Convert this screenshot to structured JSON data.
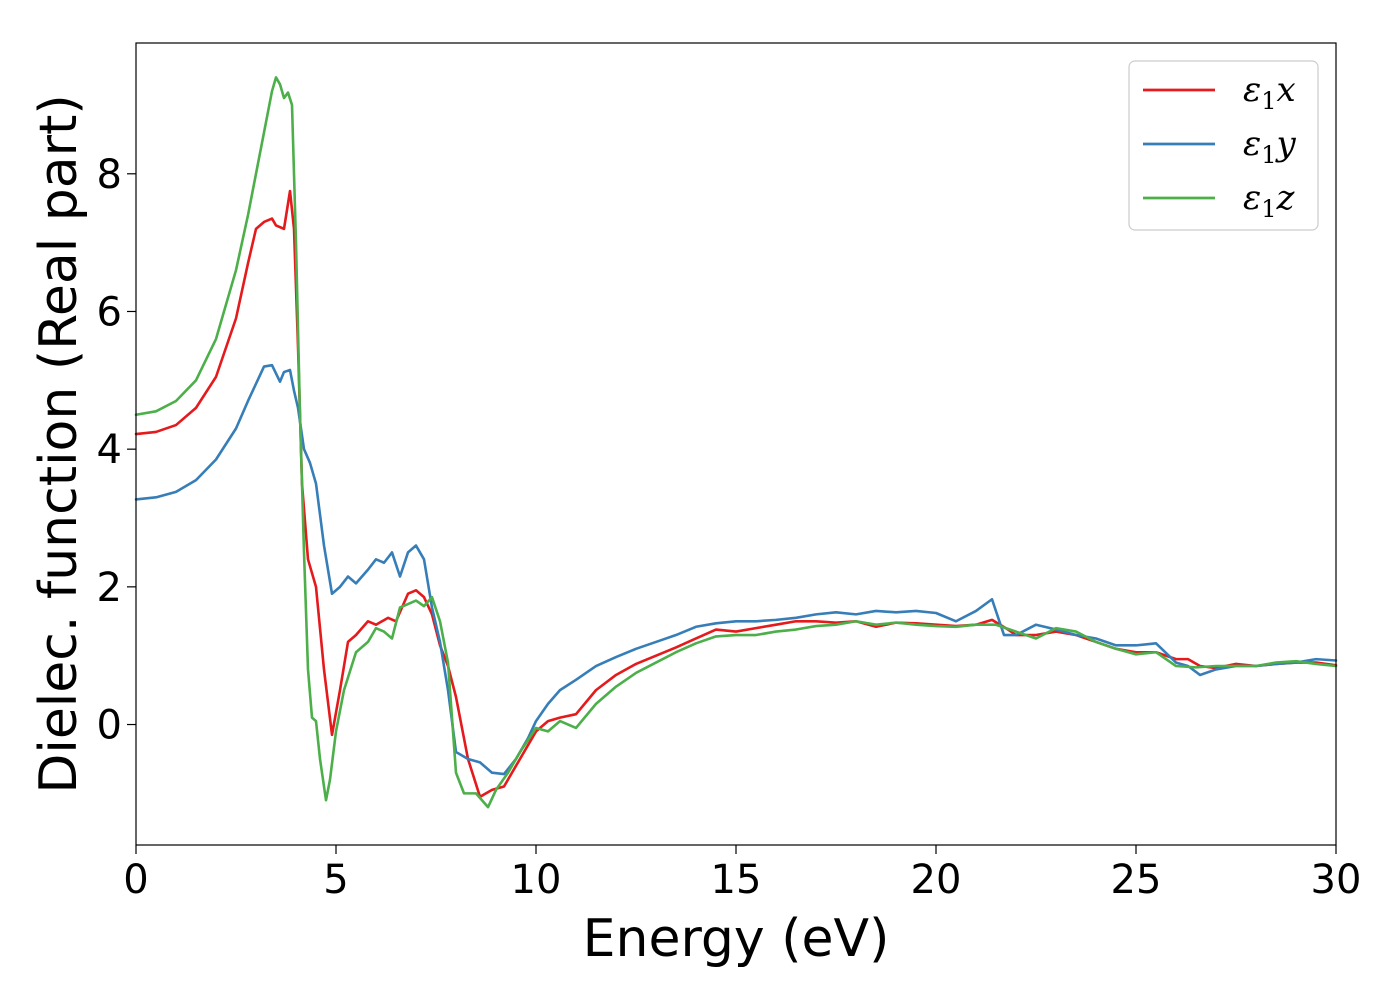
{
  "chart_data": {
    "type": "line",
    "title": "",
    "xlabel": "Energy (eV)",
    "ylabel": "Dielec. function (Real part)",
    "xlim": [
      0,
      30
    ],
    "ylim": [
      -1.75,
      9.9
    ],
    "xticks": [
      "0",
      "5",
      "10",
      "15",
      "20",
      "25",
      "30"
    ],
    "yticks": [
      "0",
      "2",
      "4",
      "6",
      "8"
    ],
    "grid": false,
    "legend_position": "top-right",
    "series": [
      {
        "name": "ε₁x",
        "legend_base": "ε",
        "legend_sub": "1",
        "legend_var": "x",
        "color": "#e41a1c",
        "x": [
          0,
          0.5,
          1.0,
          1.5,
          2.0,
          2.5,
          2.8,
          3.0,
          3.2,
          3.4,
          3.5,
          3.7,
          3.85,
          3.95,
          4.05,
          4.15,
          4.3,
          4.5,
          4.7,
          4.9,
          5.1,
          5.3,
          5.5,
          5.8,
          6.0,
          6.3,
          6.5,
          6.8,
          7.0,
          7.2,
          7.4,
          7.6,
          7.8,
          8.0,
          8.3,
          8.6,
          8.9,
          9.2,
          9.5,
          9.8,
          10.0,
          10.3,
          10.6,
          11.0,
          11.5,
          12.0,
          12.5,
          13.0,
          13.5,
          14.0,
          14.5,
          15.0,
          15.5,
          16.0,
          16.5,
          17.0,
          17.5,
          18.0,
          18.5,
          19.0,
          19.5,
          20.0,
          20.5,
          21.0,
          21.4,
          21.8,
          22.0,
          22.5,
          23.0,
          23.5,
          24.0,
          24.5,
          25.0,
          25.5,
          26.0,
          26.3,
          26.6,
          27.0,
          27.5,
          28.0,
          28.5,
          29.0,
          29.5,
          30.0
        ],
        "y": [
          4.22,
          4.25,
          4.35,
          4.6,
          5.05,
          5.9,
          6.7,
          7.2,
          7.3,
          7.35,
          7.25,
          7.2,
          7.75,
          7.2,
          5.5,
          3.5,
          2.4,
          2.0,
          0.8,
          -0.15,
          0.5,
          1.2,
          1.3,
          1.5,
          1.45,
          1.55,
          1.5,
          1.9,
          1.95,
          1.85,
          1.6,
          1.15,
          0.85,
          0.4,
          -0.5,
          -1.05,
          -0.95,
          -0.9,
          -0.6,
          -0.3,
          -0.1,
          0.05,
          0.1,
          0.15,
          0.5,
          0.72,
          0.88,
          1.0,
          1.12,
          1.25,
          1.38,
          1.35,
          1.4,
          1.45,
          1.5,
          1.5,
          1.48,
          1.5,
          1.42,
          1.48,
          1.47,
          1.45,
          1.43,
          1.45,
          1.52,
          1.38,
          1.3,
          1.3,
          1.35,
          1.3,
          1.2,
          1.1,
          1.05,
          1.05,
          0.95,
          0.95,
          0.85,
          0.82,
          0.88,
          0.85,
          0.88,
          0.9,
          0.9,
          0.86
        ]
      },
      {
        "name": "ε₁y",
        "legend_base": "ε",
        "legend_sub": "1",
        "legend_var": "y",
        "color": "#377eb8",
        "x": [
          0,
          0.5,
          1.0,
          1.5,
          2.0,
          2.5,
          2.8,
          3.0,
          3.2,
          3.4,
          3.5,
          3.6,
          3.7,
          3.85,
          3.95,
          4.05,
          4.2,
          4.35,
          4.5,
          4.7,
          4.9,
          5.1,
          5.3,
          5.5,
          5.8,
          6.0,
          6.2,
          6.4,
          6.6,
          6.8,
          7.0,
          7.2,
          7.4,
          7.6,
          7.8,
          8.0,
          8.3,
          8.6,
          8.9,
          9.2,
          9.5,
          9.8,
          10.0,
          10.3,
          10.6,
          11.0,
          11.5,
          12.0,
          12.5,
          13.0,
          13.5,
          14.0,
          14.5,
          15.0,
          15.5,
          16.0,
          16.5,
          17.0,
          17.5,
          18.0,
          18.5,
          19.0,
          19.5,
          20.0,
          20.5,
          21.0,
          21.4,
          21.7,
          22.0,
          22.5,
          23.0,
          23.5,
          24.0,
          24.5,
          25.0,
          25.5,
          26.0,
          26.3,
          26.6,
          27.0,
          27.5,
          28.0,
          28.5,
          29.0,
          29.5,
          30.0
        ],
        "y": [
          3.27,
          3.3,
          3.38,
          3.55,
          3.85,
          4.3,
          4.7,
          4.95,
          5.2,
          5.22,
          5.1,
          4.98,
          5.12,
          5.15,
          4.85,
          4.6,
          4.0,
          3.8,
          3.5,
          2.6,
          1.9,
          2.0,
          2.15,
          2.05,
          2.25,
          2.4,
          2.35,
          2.5,
          2.15,
          2.5,
          2.6,
          2.4,
          1.7,
          1.2,
          0.5,
          -0.4,
          -0.5,
          -0.55,
          -0.7,
          -0.72,
          -0.5,
          -0.2,
          0.05,
          0.3,
          0.5,
          0.65,
          0.85,
          0.98,
          1.1,
          1.2,
          1.3,
          1.42,
          1.47,
          1.5,
          1.5,
          1.52,
          1.55,
          1.6,
          1.63,
          1.6,
          1.65,
          1.63,
          1.65,
          1.62,
          1.5,
          1.65,
          1.82,
          1.3,
          1.3,
          1.45,
          1.38,
          1.3,
          1.25,
          1.15,
          1.15,
          1.18,
          0.9,
          0.85,
          0.72,
          0.8,
          0.85,
          0.85,
          0.88,
          0.9,
          0.95,
          0.93
        ]
      },
      {
        "name": "ε₁z",
        "legend_base": "ε",
        "legend_sub": "1",
        "legend_var": "z",
        "color": "#4daf4a",
        "x": [
          0,
          0.5,
          1.0,
          1.5,
          2.0,
          2.5,
          2.8,
          3.0,
          3.2,
          3.4,
          3.5,
          3.6,
          3.7,
          3.8,
          3.9,
          4.0,
          4.1,
          4.2,
          4.3,
          4.4,
          4.5,
          4.6,
          4.75,
          4.85,
          5.0,
          5.2,
          5.5,
          5.8,
          6.0,
          6.2,
          6.4,
          6.6,
          6.8,
          7.0,
          7.2,
          7.4,
          7.6,
          7.8,
          8.0,
          8.2,
          8.5,
          8.8,
          9.0,
          9.3,
          9.6,
          10.0,
          10.3,
          10.6,
          11.0,
          11.5,
          12.0,
          12.5,
          13.0,
          13.5,
          14.0,
          14.5,
          15.0,
          15.5,
          16.0,
          16.5,
          17.0,
          17.5,
          18.0,
          18.5,
          19.0,
          19.5,
          20.0,
          20.5,
          21.0,
          21.5,
          22.0,
          22.5,
          23.0,
          23.5,
          24.0,
          24.5,
          25.0,
          25.5,
          26.0,
          26.5,
          27.0,
          27.5,
          28.0,
          28.5,
          29.0,
          29.5,
          30.0
        ],
        "y": [
          4.5,
          4.55,
          4.7,
          5.0,
          5.6,
          6.6,
          7.4,
          8.0,
          8.6,
          9.2,
          9.4,
          9.3,
          9.1,
          9.18,
          9.0,
          7.0,
          4.5,
          2.5,
          0.8,
          0.1,
          0.05,
          -0.5,
          -1.1,
          -0.8,
          -0.1,
          0.5,
          1.05,
          1.2,
          1.4,
          1.35,
          1.25,
          1.7,
          1.75,
          1.8,
          1.72,
          1.85,
          1.5,
          0.9,
          -0.7,
          -1.0,
          -1.0,
          -1.2,
          -0.95,
          -0.7,
          -0.4,
          -0.05,
          -0.1,
          0.05,
          -0.05,
          0.3,
          0.55,
          0.75,
          0.9,
          1.05,
          1.18,
          1.28,
          1.3,
          1.3,
          1.35,
          1.38,
          1.43,
          1.45,
          1.5,
          1.45,
          1.48,
          1.45,
          1.43,
          1.42,
          1.45,
          1.45,
          1.35,
          1.25,
          1.4,
          1.35,
          1.2,
          1.1,
          1.02,
          1.05,
          0.85,
          0.83,
          0.85,
          0.85,
          0.85,
          0.9,
          0.92,
          0.88,
          0.85
        ]
      }
    ]
  }
}
